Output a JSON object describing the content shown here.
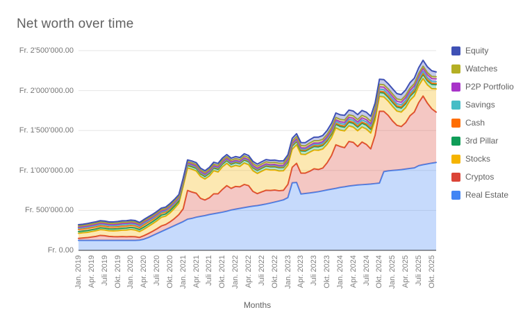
{
  "title": "Net worth over time",
  "x_axis_title": "Months",
  "legend": [
    {
      "label": "Equity",
      "color": "#3F51B5"
    },
    {
      "label": "Watches",
      "color": "#B4AF24"
    },
    {
      "label": "P2P Portfolio",
      "color": "#A834C9"
    },
    {
      "label": "Savings",
      "color": "#46BDC6"
    },
    {
      "label": "Cash",
      "color": "#FF6D00"
    },
    {
      "label": "3rd Pillar",
      "color": "#0F9D58"
    },
    {
      "label": "Stocks",
      "color": "#F5B400"
    },
    {
      "label": "Cryptos",
      "color": "#DB4437"
    },
    {
      "label": "Real Estate",
      "color": "#4285F4"
    }
  ],
  "chart_data": {
    "type": "area",
    "stacked": true,
    "title": "Net worth over time",
    "xlabel": "Months",
    "ylabel": "",
    "currency": "Fr.",
    "y_max": 2500000,
    "grid": true,
    "legend_position": "right",
    "points_monthly_from": "Jan. 2019",
    "points_monthly_to": "Nov. 2025",
    "tick_every_months": 3,
    "x_tick_labels": [
      "Jan. 2019",
      "Apr. 2019",
      "Juli 2019",
      "Okt. 2019",
      "Jan. 2020",
      "Apr. 2020",
      "Juli 2020",
      "Okt. 2020",
      "Jan. 2021",
      "Apr. 2021",
      "Juli 2021",
      "Okt. 2021",
      "Jan. 2022",
      "Apr. 2022",
      "Juli 2022",
      "Okt. 2022",
      "Jan. 2023",
      "Apr. 2023",
      "Juli 2023",
      "Okt. 2023",
      "Jan. 2024",
      "Apr. 2024",
      "Juli 2024",
      "Okt. 2024",
      "Jan. 2025",
      "Apr. 2025",
      "Juli 2025",
      "Okt. 2025"
    ],
    "y_ticks": [
      {
        "value": 0,
        "label": "Fr. 0.00"
      },
      {
        "value": 500000,
        "label": "Fr. 500'000.00"
      },
      {
        "value": 1000000,
        "label": "Fr. 1'000'000.00"
      },
      {
        "value": 1500000,
        "label": "Fr. 1'500'000.00"
      },
      {
        "value": 2000000,
        "label": "Fr. 2'000'000.00"
      },
      {
        "value": 2500000,
        "label": "Fr. 2'500'000.00"
      }
    ],
    "series": [
      {
        "name": "Real Estate",
        "color": "#4285F4",
        "values": [
          125000,
          125000,
          125000,
          125000,
          125000,
          125000,
          125000,
          125000,
          125000,
          125000,
          125000,
          125000,
          125000,
          125000,
          128000,
          140000,
          160000,
          185000,
          210000,
          235000,
          260000,
          285000,
          310000,
          335000,
          360000,
          390000,
          400000,
          415000,
          425000,
          435000,
          448000,
          458000,
          468000,
          478000,
          490000,
          505000,
          515000,
          525000,
          535000,
          545000,
          553000,
          560000,
          570000,
          580000,
          592000,
          605000,
          618000,
          632000,
          660000,
          845000,
          850000,
          705000,
          712000,
          718000,
          726000,
          734000,
          745000,
          756000,
          766000,
          776000,
          788000,
          795000,
          805000,
          812000,
          818000,
          822000,
          826000,
          830000,
          836000,
          842000,
          985000,
          995000,
          1000000,
          1005000,
          1010000,
          1018000,
          1025000,
          1032000,
          1060000,
          1072000,
          1082000,
          1092000,
          1100000
        ]
      },
      {
        "name": "Cryptos",
        "color": "#DB4437",
        "values": [
          25000,
          30000,
          34000,
          42000,
          50000,
          62000,
          58000,
          50000,
          46000,
          45000,
          48000,
          45000,
          48000,
          45000,
          34000,
          44000,
          50000,
          54000,
          60000,
          70000,
          64000,
          72000,
          88000,
          112000,
          160000,
          360000,
          330000,
          300000,
          225000,
          195000,
          210000,
          250000,
          240000,
          285000,
          320000,
          270000,
          285000,
          270000,
          290000,
          265000,
          185000,
          150000,
          162000,
          172000,
          158000,
          150000,
          128000,
          120000,
          165000,
          195000,
          240000,
          262000,
          255000,
          272000,
          295000,
          278000,
          285000,
          340000,
          420000,
          545000,
          512000,
          490000,
          558000,
          540000,
          482000,
          534000,
          500000,
          440000,
          604000,
          900000,
          755000,
          695000,
          620000,
          560000,
          540000,
          580000,
          660000,
          700000,
          790000,
          860000,
          760000,
          680000,
          630000
        ]
      },
      {
        "name": "Stocks",
        "color": "#F5B400",
        "values": [
          63000,
          65000,
          66000,
          68000,
          70000,
          72000,
          72000,
          70000,
          72000,
          76000,
          80000,
          84000,
          88000,
          84000,
          72000,
          80000,
          88000,
          94000,
          100000,
          108000,
          104000,
          112000,
          126000,
          140000,
          280000,
          280000,
          285000,
          278000,
          273000,
          262000,
          272000,
          288000,
          272000,
          282000,
          278000,
          268000,
          262000,
          255000,
          268000,
          262000,
          258000,
          252000,
          258000,
          264000,
          256000,
          252000,
          248000,
          244000,
          238000,
          225000,
          230000,
          236000,
          232000,
          238000,
          235000,
          240000,
          238000,
          230000,
          222000,
          212000,
          205000,
          210000,
          195000,
          190000,
          196000,
          188000,
          192000,
          198000,
          190000,
          185000,
          180000,
          178000,
          182000,
          178000,
          180000,
          186000,
          192000,
          200000,
          210000,
          218000,
          228000,
          252000,
          290000
        ]
      },
      {
        "name": "3rd Pillar",
        "color": "#0F9D58",
        "values": [
          22000,
          22000,
          23000,
          23000,
          23000,
          24000,
          24000,
          24000,
          25000,
          25000,
          25000,
          26000,
          27000,
          27000,
          27000,
          28000,
          28000,
          28000,
          29000,
          29000,
          29000,
          30000,
          30000,
          30000,
          33000,
          33000,
          33000,
          34000,
          34000,
          34000,
          35000,
          35000,
          35000,
          36000,
          36000,
          36000,
          37000,
          37000,
          38000,
          38000,
          38000,
          39000,
          39000,
          39000,
          40000,
          40000,
          41000,
          41000,
          42000,
          42000,
          43000,
          43000,
          43000,
          44000,
          44000,
          44000,
          45000,
          45000,
          46000,
          46000,
          47000,
          47000,
          47000,
          48000,
          48000,
          48000,
          49000,
          49000,
          49000,
          50000,
          50000,
          50000,
          51000,
          51000,
          51000,
          52000,
          52000,
          52000,
          53000,
          53000,
          53000,
          54000,
          54000
        ]
      },
      {
        "name": "Cash",
        "color": "#FF6D00",
        "values": [
          26000,
          25000,
          27000,
          27000,
          26000,
          25000,
          25000,
          24000,
          24000,
          24000,
          26000,
          25000,
          25000,
          26000,
          24000,
          28000,
          27000,
          26000,
          26000,
          25000,
          24000,
          25000,
          22000,
          18000,
          12000,
          10000,
          10000,
          11000,
          10000,
          10000,
          11000,
          10000,
          10000,
          11000,
          10000,
          10000,
          9000,
          9000,
          10000,
          9000,
          9000,
          8000,
          9000,
          9000,
          8000,
          9000,
          8000,
          8000,
          10000,
          11000,
          10000,
          12000,
          11000,
          12000,
          12000,
          13000,
          12000,
          13000,
          14000,
          14000,
          15000,
          14000,
          15000,
          15000,
          14000,
          15000,
          16000,
          15000,
          16000,
          15000,
          16000,
          15000,
          16000,
          15000,
          15000,
          16000,
          15000,
          16000,
          15000,
          16000,
          15000,
          15000,
          15000
        ]
      },
      {
        "name": "Savings",
        "color": "#46BDC6",
        "values": [
          17000,
          17000,
          17000,
          18000,
          18000,
          18000,
          18000,
          18000,
          18000,
          19000,
          19000,
          19000,
          19000,
          19000,
          19000,
          19000,
          18000,
          16000,
          14000,
          13000,
          12000,
          12000,
          11000,
          10000,
          8000,
          8000,
          8000,
          8000,
          8000,
          8000,
          8000,
          8000,
          8000,
          8000,
          8000,
          8000,
          8000,
          8000,
          8000,
          8000,
          9000,
          9000,
          9000,
          9000,
          9000,
          10000,
          10000,
          10000,
          11000,
          12000,
          12000,
          13000,
          14000,
          15000,
          16000,
          17000,
          18000,
          19000,
          20000,
          21000,
          22000,
          23000,
          23000,
          24000,
          24000,
          25000,
          25000,
          25000,
          26000,
          26000,
          26000,
          26000,
          26000,
          25000,
          25000,
          25000,
          24000,
          24000,
          24000,
          24000,
          24000,
          24000,
          24000
        ]
      },
      {
        "name": "P2P Portfolio",
        "color": "#A834C9",
        "values": [
          12000,
          12000,
          12000,
          12000,
          13000,
          13000,
          13000,
          13000,
          13000,
          14000,
          14000,
          14000,
          14000,
          14000,
          14000,
          15000,
          15000,
          15000,
          15000,
          15000,
          15000,
          15000,
          14000,
          14000,
          13000,
          13000,
          12000,
          12000,
          12000,
          11000,
          11000,
          11000,
          10000,
          10000,
          10000,
          10000,
          10000,
          10000,
          10000,
          10000,
          10000,
          10000,
          10000,
          10000,
          10000,
          10000,
          10000,
          10000,
          11000,
          12000,
          12000,
          13000,
          14000,
          15000,
          16000,
          17000,
          18000,
          19000,
          20000,
          21000,
          22000,
          23000,
          24000,
          25000,
          26000,
          27000,
          28000,
          28000,
          29000,
          30000,
          31000,
          32000,
          32000,
          33000,
          33000,
          34000,
          34000,
          34000,
          35000,
          35000,
          35000,
          34000,
          34000
        ]
      },
      {
        "name": "Watches",
        "color": "#B4AF24",
        "values": [
          15000,
          15000,
          15000,
          15000,
          15000,
          15000,
          15000,
          15000,
          15000,
          15000,
          15000,
          15000,
          15000,
          15000,
          15000,
          15000,
          15000,
          15000,
          15000,
          15000,
          15000,
          15000,
          16000,
          16000,
          16000,
          16000,
          17000,
          17000,
          18000,
          18000,
          19000,
          19000,
          20000,
          20000,
          21000,
          21000,
          22000,
          22000,
          23000,
          23000,
          24000,
          24000,
          24000,
          25000,
          25000,
          25000,
          26000,
          26000,
          26000,
          26000,
          27000,
          27000,
          27000,
          28000,
          28000,
          28000,
          28000,
          28000,
          28000,
          28000,
          28000,
          29000,
          29000,
          29000,
          29000,
          30000,
          30000,
          30000,
          30000,
          30000,
          30000,
          30000,
          30000,
          29000,
          29000,
          28000,
          28000,
          28000,
          27000,
          27000,
          27000,
          26000,
          26000
        ]
      },
      {
        "name": "Equity",
        "color": "#3F51B5",
        "values": [
          16000,
          16000,
          16000,
          17000,
          17000,
          17000,
          17000,
          17000,
          18000,
          18000,
          18000,
          18000,
          18000,
          18000,
          16000,
          17000,
          18000,
          18000,
          19000,
          19000,
          19000,
          20000,
          21000,
          22000,
          22000,
          22000,
          23000,
          23000,
          23000,
          24000,
          24000,
          24000,
          25000,
          25000,
          26000,
          26000,
          26000,
          26000,
          27000,
          27000,
          27000,
          28000,
          28000,
          28000,
          29000,
          29000,
          30000,
          30000,
          32000,
          34000,
          36000,
          38000,
          40000,
          42000,
          44000,
          46000,
          48000,
          50000,
          53000,
          56000,
          58000,
          59000,
          60000,
          61000,
          62000,
          62000,
          63000,
          63000,
          64000,
          64000,
          65000,
          65000,
          66000,
          66000,
          67000,
          68000,
          69000,
          70000,
          72000,
          74000,
          73000,
          70000,
          60000
        ]
      }
    ]
  }
}
